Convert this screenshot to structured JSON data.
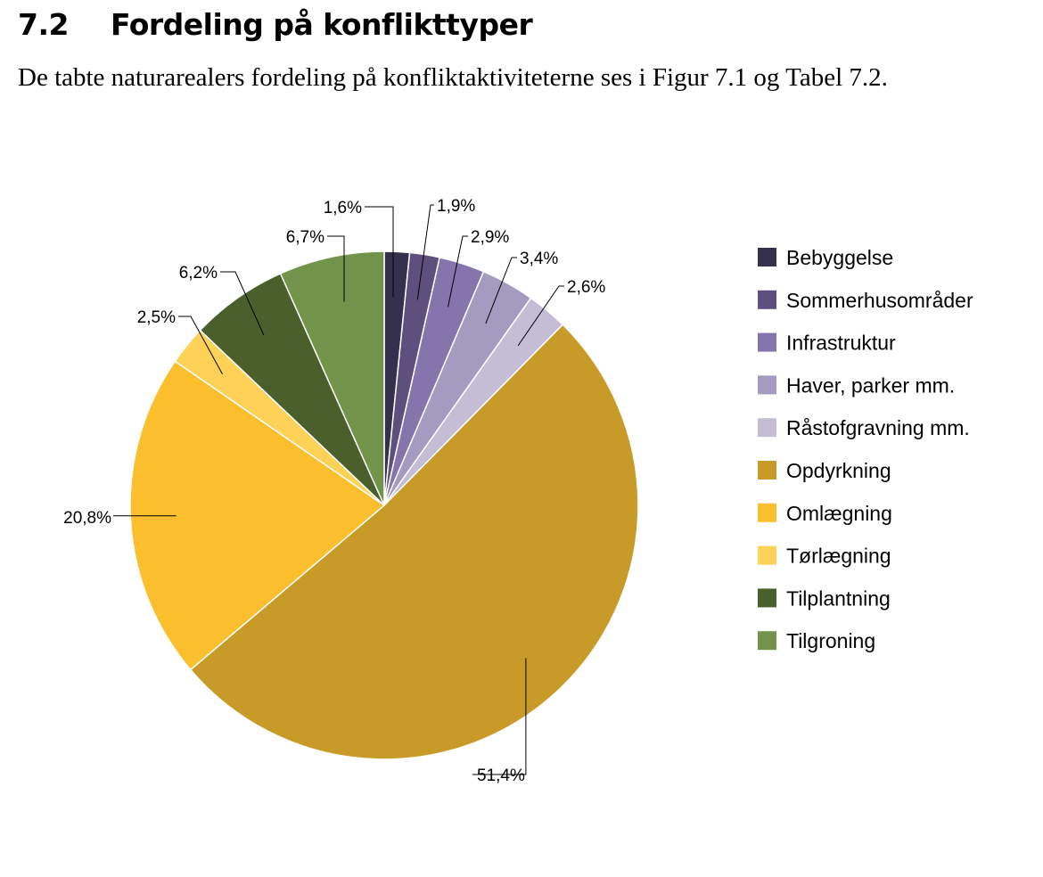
{
  "section": {
    "number": "7.2",
    "title": "Fordeling på konflikttyper",
    "paragraph": "De tabte naturarealers fordeling på konfliktaktiviteterne ses i Figur 7.1 og Tabel 7.2."
  },
  "chart_data": {
    "type": "pie",
    "categories": [
      "Bebyggelse",
      "Sommerhusområder",
      "Infrastruktur",
      "Haver, parker mm.",
      "Råstofgravning mm.",
      "Opdyrkning",
      "Omlægning",
      "Tørlægning",
      "Tilplantning",
      "Tilgroning"
    ],
    "values": [
      1.6,
      1.9,
      2.9,
      3.4,
      2.6,
      51.4,
      20.8,
      2.5,
      6.2,
      6.7
    ],
    "labels": [
      "1,6%",
      "1,9%",
      "2,9%",
      "3,4%",
      "2,6%",
      "51,4%",
      "20,8%",
      "2,5%",
      "6,2%",
      "6,7%"
    ],
    "colors": [
      "#36304f",
      "#5e4f7e",
      "#8674ac",
      "#a59ac0",
      "#c5bcd6",
      "#c89b28",
      "#fbbe2c",
      "#fdd257",
      "#4a5f2c",
      "#71944a"
    ],
    "start_angle_deg": 0,
    "direction": "clockwise",
    "legend_position": "right"
  }
}
